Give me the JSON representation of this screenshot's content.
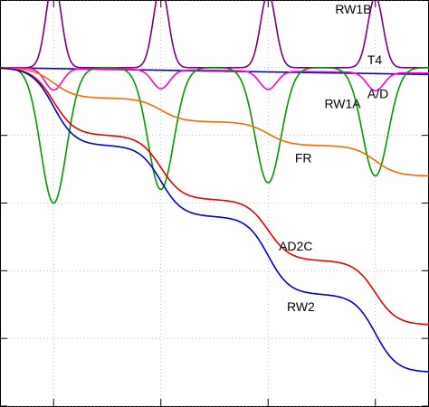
{
  "chart_data": {
    "type": "line",
    "title": "",
    "xlabel": "",
    "ylabel": "",
    "xlim": [
      0,
      8
    ],
    "ylim": [
      -5,
      1
    ],
    "grid": true,
    "legend": "inline labels",
    "x_ticks": [
      1,
      3,
      5,
      7
    ],
    "y_ticks": [
      1,
      0,
      -1,
      -2,
      -3,
      -4,
      -5
    ],
    "events": [
      1,
      3,
      5,
      7
    ],
    "series": [
      {
        "name": "RW1B",
        "color": "#7b007b",
        "kind": "pulse",
        "baseline": 0.0,
        "amplitudes": [
          1.3,
          1.2,
          1.1,
          1.05
        ],
        "width": 0.14
      },
      {
        "name": "T4",
        "color": "#0000cc",
        "kind": "linear",
        "start": 0.0,
        "end": -0.1
      },
      {
        "name": "A/D",
        "color": "#ff00cc",
        "kind": "pulse",
        "baseline": 0.0,
        "amplitudes": [
          -0.32,
          -0.28,
          -0.27,
          -0.27
        ],
        "width": 0.16,
        "drift": -0.08
      },
      {
        "name": "RW1A",
        "color": "#009900",
        "kind": "pulse",
        "baseline": 0.0,
        "amplitudes": [
          -2.0,
          -1.8,
          -1.7,
          -1.6
        ],
        "width": 0.24
      },
      {
        "name": "FR",
        "color": "#ff6600",
        "kind": "steps",
        "start": 0.0,
        "levels": [
          -0.45,
          -0.8,
          -1.15,
          -1.6
        ],
        "width": 0.2
      },
      {
        "name": "AD2C",
        "color": "#e60000",
        "kind": "steps",
        "start": 0.0,
        "levels": [
          -1.0,
          -1.95,
          -2.85,
          -3.8
        ],
        "width": 0.2
      },
      {
        "name": "RW2",
        "color": "#0000cc",
        "kind": "steps",
        "start": 0.0,
        "levels": [
          -1.15,
          -2.2,
          -3.35,
          -4.5
        ],
        "width": 0.2
      }
    ],
    "annotations": [
      {
        "text": "RW1B",
        "x": 6.25,
        "y": 0.8
      },
      {
        "text": "T4",
        "x": 6.85,
        "y": 0.05
      },
      {
        "text": "A/D",
        "x": 6.85,
        "y": -0.45
      },
      {
        "text": "RW1A",
        "x": 6.05,
        "y": -0.6
      },
      {
        "text": "FR",
        "x": 5.5,
        "y": -1.4
      },
      {
        "text": "AD2C",
        "x": 5.2,
        "y": -2.7
      },
      {
        "text": "RW2",
        "x": 5.35,
        "y": -3.6
      }
    ]
  }
}
